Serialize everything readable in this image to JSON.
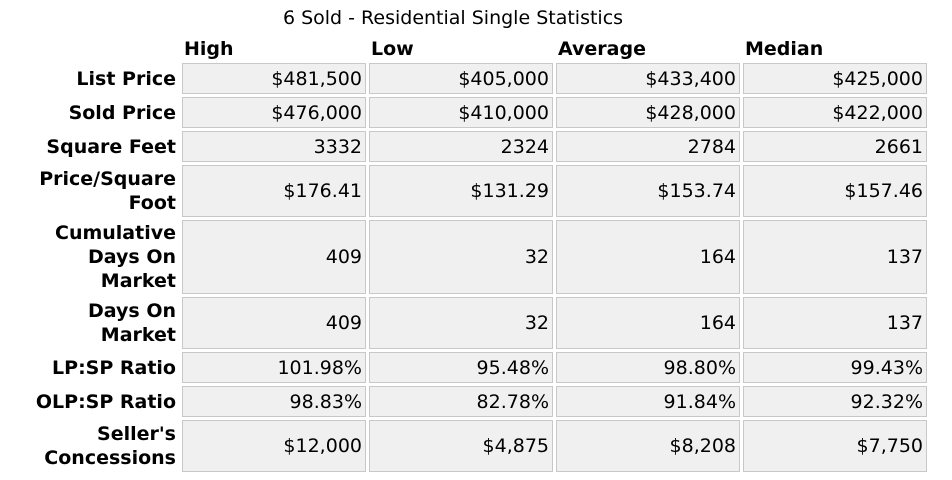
{
  "title": "6 Sold - Residential Single Statistics",
  "columns": [
    "High",
    "Low",
    "Average",
    "Median"
  ],
  "rows": [
    {
      "label": "List Price",
      "values": [
        "$481,500",
        "$405,000",
        "$433,400",
        "$425,000"
      ]
    },
    {
      "label": "Sold Price",
      "values": [
        "$476,000",
        "$410,000",
        "$428,000",
        "$422,000"
      ]
    },
    {
      "label": "Square Feet",
      "values": [
        "3332",
        "2324",
        "2784",
        "2661"
      ]
    },
    {
      "label": "Price/Square Foot",
      "values": [
        "$176.41",
        "$131.29",
        "$153.74",
        "$157.46"
      ]
    },
    {
      "label": "Cumulative Days On Market",
      "values": [
        "409",
        "32",
        "164",
        "137"
      ]
    },
    {
      "label": "Days On Market",
      "values": [
        "409",
        "32",
        "164",
        "137"
      ]
    },
    {
      "label": "LP:SP Ratio",
      "values": [
        "101.98%",
        "95.48%",
        "98.80%",
        "99.43%"
      ]
    },
    {
      "label": "OLP:SP Ratio",
      "values": [
        "98.83%",
        "82.78%",
        "91.84%",
        "92.32%"
      ]
    },
    {
      "label": "Seller's Concessions",
      "values": [
        "$12,000",
        "$4,875",
        "$8,208",
        "$7,750"
      ]
    }
  ]
}
